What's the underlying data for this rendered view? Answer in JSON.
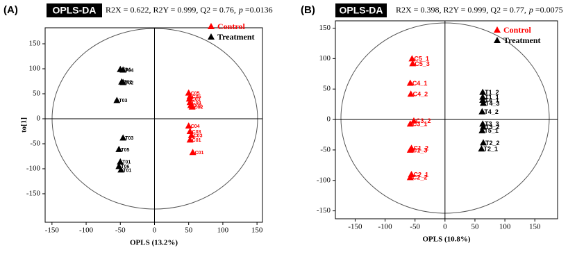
{
  "chart_data": [
    {
      "type": "scatter",
      "panel_label": "(A)",
      "title": "OPLS-DA",
      "stats": "R2X = 0.622, R2Y = 0.999, Q2 = 0.76,",
      "p_label": "p",
      "p_value": "=0.0136",
      "xlabel": "OPLS (13.2%)",
      "ylabel": "to[1]",
      "xlim": [
        -160,
        158
      ],
      "ylim": [
        -207,
        182
      ],
      "xticks": [
        -150,
        -100,
        -50,
        0,
        50,
        100,
        150
      ],
      "yticks": [
        -150,
        -100,
        -50,
        0,
        50,
        100,
        150
      ],
      "legend": "top-right",
      "series": [
        {
          "name": "Control",
          "color": "#ff0000",
          "x": [
            50,
            52,
            51,
            52,
            53,
            55,
            50,
            52,
            54,
            52,
            56
          ],
          "values": [
            52,
            45,
            40,
            33,
            27,
            24,
            -14,
            -25,
            -33,
            -42,
            -67
          ],
          "labels": [
            "C05",
            "C05",
            "C03",
            "C04",
            "C02",
            "C02",
            "C04",
            "C03",
            "C03",
            "C01",
            "C01"
          ]
        },
        {
          "name": "Treatment",
          "color": "#000000",
          "x": [
            -50,
            -46,
            -48,
            -46,
            -55,
            -46,
            -52,
            -50,
            -52,
            -49
          ],
          "values": [
            99,
            98,
            74,
            73,
            37,
            -38,
            -61,
            -86,
            -95,
            -102
          ],
          "labels": [
            "T04",
            "T04",
            "T02",
            "T02",
            "T03",
            "T03",
            "T05",
            "T01",
            "T06",
            "T01"
          ]
        }
      ]
    },
    {
      "type": "scatter",
      "panel_label": "(B)",
      "title": "OPLS-DA",
      "stats": "R2X = 0.398, R2Y = 0.999, Q2 = 0.77,",
      "p_label": "p",
      "p_value": "=0.0075",
      "xlabel": "OPLS (10.8%)",
      "xlim": [
        -183,
        188
      ],
      "ylim": [
        -163,
        162
      ],
      "xticks": [
        -150,
        -100,
        -50,
        0,
        50,
        100,
        150
      ],
      "yticks": [
        -150,
        -100,
        -50,
        0,
        50,
        100,
        150
      ],
      "legend": "top-right",
      "series": [
        {
          "name": "Control",
          "color": "#ff0000",
          "x": [
            -55,
            -54,
            -58,
            -57,
            -52,
            -58,
            -56,
            -58,
            -56,
            -58
          ],
          "values": [
            100,
            92,
            60,
            42,
            -2,
            -7,
            -47,
            -50,
            -90,
            -95
          ],
          "labels": [
            "C5_1",
            "C5_3",
            "C4_1",
            "C4_2",
            "C3_2",
            "C3_1",
            "C1_2",
            "C1_3",
            "C2_1",
            "C2_2"
          ]
        },
        {
          "name": "Treatment",
          "color": "#000000",
          "x": [
            63,
            63,
            63,
            64,
            62,
            63,
            64,
            62,
            64,
            61
          ],
          "values": [
            45,
            37,
            32,
            27,
            13,
            -7,
            -12,
            -18,
            -38,
            -48
          ],
          "labels": [
            "T1_2",
            "T1_1",
            "T4_1",
            "T4_3",
            "T4_2",
            "T3_3",
            "T3_2",
            "T5_1",
            "T2_2",
            "T2_1"
          ]
        }
      ]
    }
  ]
}
